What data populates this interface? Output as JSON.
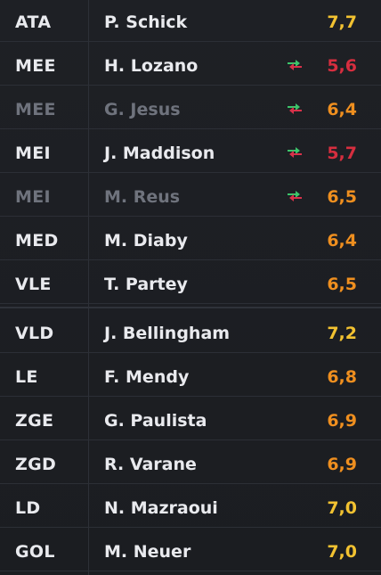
{
  "colors": {
    "rating_high": "#f2c231",
    "rating_mid": "#ef8f1f",
    "rating_low": "#d62e3f",
    "sub_in_arrow": "#3cc46a",
    "sub_out_arrow": "#d8324a"
  },
  "players": [
    {
      "position": "ATA",
      "name": "P. Schick",
      "rating": "7,7",
      "rating_level": "high",
      "substitution": false,
      "subbed_out": false
    },
    {
      "position": "MEE",
      "name": "H. Lozano",
      "rating": "5,6",
      "rating_level": "low",
      "substitution": true,
      "subbed_out": false
    },
    {
      "position": "MEE",
      "name": "G. Jesus",
      "rating": "6,4",
      "rating_level": "mid",
      "substitution": true,
      "subbed_out": true
    },
    {
      "position": "MEI",
      "name": "J. Maddison",
      "rating": "5,7",
      "rating_level": "low",
      "substitution": true,
      "subbed_out": false
    },
    {
      "position": "MEI",
      "name": "M. Reus",
      "rating": "6,5",
      "rating_level": "mid",
      "substitution": true,
      "subbed_out": true
    },
    {
      "position": "MED",
      "name": "M. Diaby",
      "rating": "6,4",
      "rating_level": "mid",
      "substitution": false,
      "subbed_out": false
    },
    {
      "position": "VLE",
      "name": "T. Partey",
      "rating": "6,5",
      "rating_level": "mid",
      "substitution": false,
      "subbed_out": false
    },
    {
      "position": "VLD",
      "name": "J. Bellingham",
      "rating": "7,2",
      "rating_level": "high",
      "substitution": false,
      "subbed_out": false
    },
    {
      "position": "LE",
      "name": "F. Mendy",
      "rating": "6,8",
      "rating_level": "mid",
      "substitution": false,
      "subbed_out": false
    },
    {
      "position": "ZGE",
      "name": "G. Paulista",
      "rating": "6,9",
      "rating_level": "mid",
      "substitution": false,
      "subbed_out": false
    },
    {
      "position": "ZGD",
      "name": "R. Varane",
      "rating": "6,9",
      "rating_level": "mid",
      "substitution": false,
      "subbed_out": false
    },
    {
      "position": "LD",
      "name": "N. Mazraoui",
      "rating": "7,0",
      "rating_level": "high",
      "substitution": false,
      "subbed_out": false
    },
    {
      "position": "GOL",
      "name": "M. Neuer",
      "rating": "7,0",
      "rating_level": "high",
      "substitution": false,
      "subbed_out": false
    }
  ]
}
